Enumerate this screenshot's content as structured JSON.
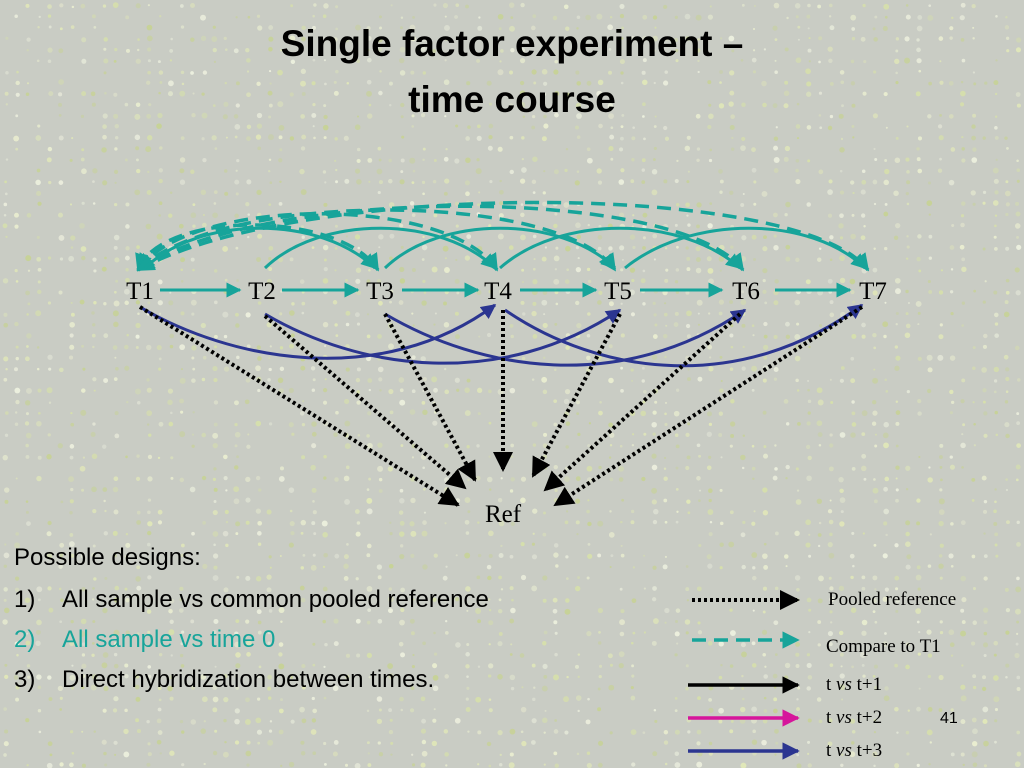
{
  "slide": {
    "title_line1": "Single factor experiment –",
    "title_line2": "time course",
    "page_number": "41",
    "colors": {
      "teal": "#17a49a",
      "navy": "#2b3590",
      "magenta": "#d6159b",
      "black": "#000000"
    }
  },
  "diagram": {
    "nodes": [
      "T1",
      "T2",
      "T3",
      "T4",
      "T5",
      "T6",
      "T7"
    ],
    "reference_node": "Ref"
  },
  "text": {
    "heading": "Possible designs:",
    "items": [
      {
        "num": "1)",
        "text": "All sample vs common pooled reference"
      },
      {
        "num": "2)",
        "text": "All sample vs time 0"
      },
      {
        "num": "3)",
        "text": "Direct hybridization between times."
      }
    ]
  },
  "legend": {
    "pooled": "Pooled reference",
    "compare": "Compare to T1",
    "t1_pre": "t ",
    "t1_vs": "vs",
    "t1_post": " t+1",
    "t2_pre": "t ",
    "t2_vs": "vs",
    "t2_post": " t+2",
    "t3_pre": "t ",
    "t3_vs": "vs",
    "t3_post": " t+3"
  }
}
